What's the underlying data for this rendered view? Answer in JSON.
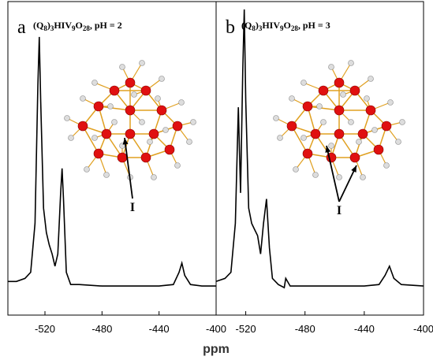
{
  "chart_data": [
    {
      "type": "line",
      "panel": "a",
      "title": "(Q8)3HIV9O28, pH = 2",
      "annotation": "I",
      "color": "#000000",
      "x": [
        -546,
        -540,
        -534,
        -530,
        -527,
        -525,
        -524,
        -523,
        -521,
        -519,
        -517,
        -515,
        -513,
        -511,
        -509,
        -508,
        -507,
        -505,
        -502,
        -496,
        -480,
        -460,
        -440,
        -430,
        -426,
        -424,
        -422,
        -418,
        -410,
        -400
      ],
      "values": [
        11,
        11,
        12,
        14,
        30,
        75,
        91,
        70,
        35,
        27,
        23,
        20,
        16,
        20,
        40,
        48,
        38,
        14,
        10,
        10,
        9.5,
        9.5,
        9.5,
        10,
        14,
        17,
        13,
        10,
        9.5,
        9.5
      ],
      "xlim": [
        -546,
        -400
      ],
      "xticks": [
        -520,
        -480,
        -440,
        -400
      ],
      "ylim": [
        0,
        100
      ]
    },
    {
      "type": "line",
      "panel": "b",
      "title": "(Q8)3HIV9O28, pH = 3",
      "annotation": "I",
      "color": "#000000",
      "x": [
        -540,
        -534,
        -530,
        -527,
        -525,
        -523.5,
        -522,
        -521,
        -520,
        -518,
        -516,
        -514,
        -512,
        -510,
        -508,
        -506,
        -504,
        -502,
        -498,
        -494,
        -493,
        -490,
        -470,
        -440,
        -430,
        -426,
        -423,
        -420,
        -415,
        -400
      ],
      "values": [
        11,
        12,
        14,
        30,
        68,
        40,
        80,
        100,
        70,
        35,
        30,
        28,
        26,
        20,
        30,
        38,
        22,
        12,
        10,
        9,
        12,
        9.5,
        9.5,
        9.5,
        10,
        13,
        16,
        12,
        10,
        9.5
      ],
      "xlim": [
        -540,
        -400
      ],
      "xticks": [
        -520,
        -480,
        -440,
        -400
      ],
      "ylim": [
        0,
        100
      ]
    }
  ],
  "xlabel": "ppm"
}
